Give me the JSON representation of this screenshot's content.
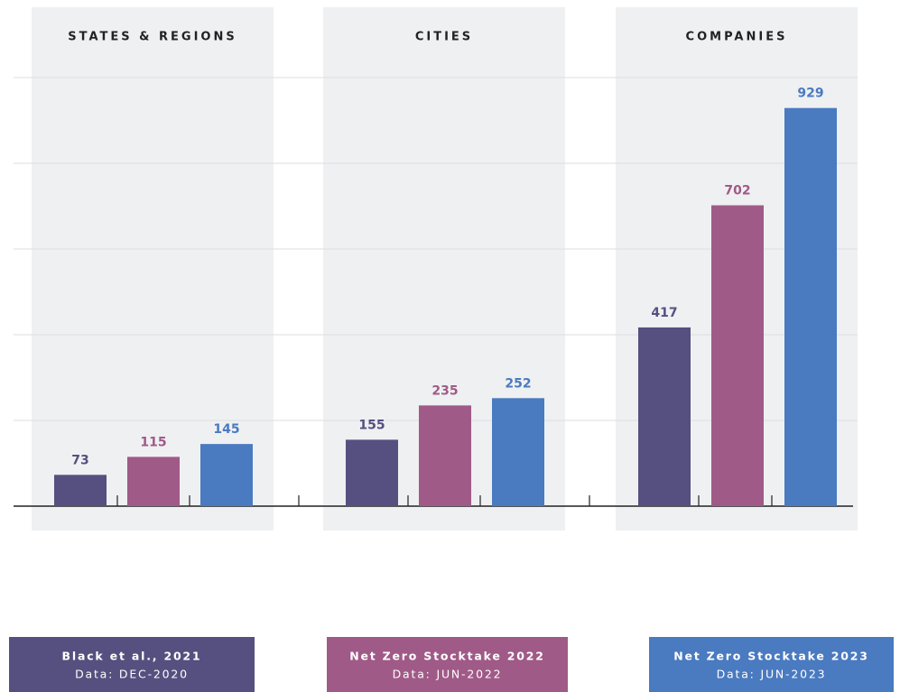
{
  "chart_data": {
    "type": "bar",
    "categories": [
      "STATES & REGIONS",
      "CITIES",
      "COMPANIES"
    ],
    "series": [
      {
        "name": "Black et al., 2021",
        "note": "Data: DEC-2020",
        "color": "#55507f",
        "values": [
          73,
          155,
          417
        ]
      },
      {
        "name": "Net Zero Stocktake 2022",
        "note": "Data: JUN-2022",
        "color": "#a05a87",
        "values": [
          115,
          235,
          702
        ]
      },
      {
        "name": "Net Zero Stocktake 2023",
        "note": "Data: JUN-2023",
        "color": "#4a7ac0",
        "values": [
          145,
          252,
          929
        ]
      }
    ],
    "ylim": [
      0,
      1000
    ],
    "yticks": [
      0,
      200,
      400,
      600,
      800,
      1000
    ],
    "grid": true
  }
}
